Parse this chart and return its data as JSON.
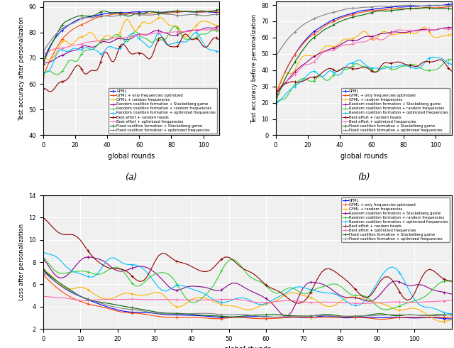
{
  "n_rounds": 110,
  "labels": [
    "GFML",
    "GFML + only frequencies optimized",
    "GFML + random frequencies",
    "Random coalition formation + Stackelberg game",
    "Random coalition formation + random frequencies",
    "Random coalition formation + optimized frequencies",
    "Best effort + random heads",
    "Best effort + optimized frequencies",
    "Fixed coalition formation + Stackelberg game",
    "Fixed coalition formation + optimized frequencies"
  ],
  "colors": [
    "#0000FF",
    "#FF4500",
    "#FFB300",
    "#8B008B",
    "#32CD32",
    "#00BFFF",
    "#8B0000",
    "#FF69B4",
    "#006400",
    "#808080"
  ],
  "ylabel_a": "Test accuracy after personalization",
  "ylabel_b": "Test accuracy before personalization",
  "ylabel_c": "Loss after personalization",
  "xlabel": "global rounds",
  "ylim_a": [
    40,
    92
  ],
  "ylim_b": [
    0,
    82
  ],
  "ylim_c": [
    2,
    14
  ],
  "yticks_a": [
    40,
    50,
    60,
    70,
    80,
    90
  ],
  "yticks_b": [
    0,
    10,
    20,
    30,
    40,
    50,
    60,
    70,
    80
  ],
  "yticks_c": [
    2,
    4,
    6,
    8,
    10,
    12,
    14
  ],
  "xticks_ab": [
    0,
    20,
    40,
    60,
    80,
    100
  ],
  "xticks_c": [
    0,
    10,
    20,
    30,
    40,
    50,
    60,
    70,
    80,
    90,
    100
  ],
  "background_color": "#f0f0f0",
  "grid_color": "#ffffff",
  "fig_facecolor": "#d8d8d8"
}
